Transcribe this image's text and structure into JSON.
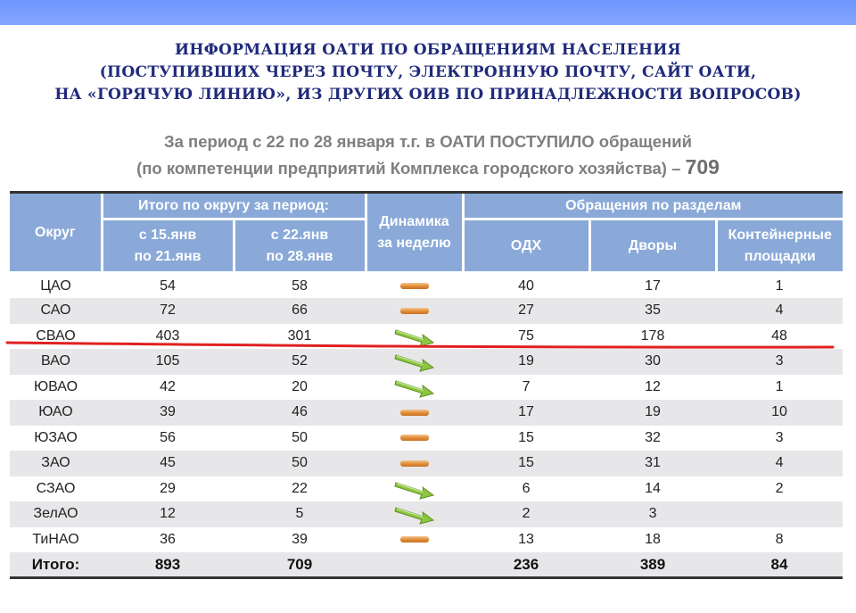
{
  "header": {
    "title_lines": [
      "ИНФОРМАЦИЯ ОАТИ ПО ОБРАЩЕНИЯМ НАСЕЛЕНИЯ",
      "(ПОСТУПИВШИХ ЧЕРЕЗ ПОЧТУ, ЭЛЕКТРОННУЮ ПОЧТУ, САЙТ ОАТИ,",
      "НА «ГОРЯЧУЮ ЛИНИЮ», ИЗ ДРУГИХ ОИВ ПО ПРИНАДЛЕЖНОСТИ ВОПРОСОВ)"
    ],
    "subtitle_line1": "За период с 22 по 28 января т.г. в ОАТИ ПОСТУПИЛО обращений",
    "subtitle_line2": "(по компетенции предприятий Комплекса городского хозяйства) –",
    "subtitle_total": "709"
  },
  "table": {
    "headers": {
      "district": "Округ",
      "period_group": "Итого по округу за период:",
      "period_prev": [
        "с 15.янв",
        "по 21.янв"
      ],
      "period_curr": [
        "с 22.янв",
        "по 28.янв"
      ],
      "dynamics": [
        "Динамика",
        "за неделю"
      ],
      "sections_group": "Обращения по разделам",
      "odh": "ОДХ",
      "yards": "Дворы",
      "containers": [
        "Контейнерные",
        "площадки"
      ]
    },
    "rows": [
      {
        "district": "ЦАО",
        "prev": "54",
        "curr": "58",
        "dynamic": "flat",
        "odh": "40",
        "yards": "17",
        "containers": "1"
      },
      {
        "district": "САО",
        "prev": "72",
        "curr": "66",
        "dynamic": "flat",
        "odh": "27",
        "yards": "35",
        "containers": "4"
      },
      {
        "district": "СВАО",
        "prev": "403",
        "curr": "301",
        "dynamic": "down",
        "odh": "75",
        "yards": "178",
        "containers": "48"
      },
      {
        "district": "ВАО",
        "prev": "105",
        "curr": "52",
        "dynamic": "down",
        "odh": "19",
        "yards": "30",
        "containers": "3"
      },
      {
        "district": "ЮВАО",
        "prev": "42",
        "curr": "20",
        "dynamic": "down",
        "odh": "7",
        "yards": "12",
        "containers": "1"
      },
      {
        "district": "ЮАО",
        "prev": "39",
        "curr": "46",
        "dynamic": "flat",
        "odh": "17",
        "yards": "19",
        "containers": "10"
      },
      {
        "district": "ЮЗАО",
        "prev": "56",
        "curr": "50",
        "dynamic": "flat",
        "odh": "15",
        "yards": "32",
        "containers": "3"
      },
      {
        "district": "ЗАО",
        "prev": "45",
        "curr": "50",
        "dynamic": "flat",
        "odh": "15",
        "yards": "31",
        "containers": "4"
      },
      {
        "district": "СЗАО",
        "prev": "29",
        "curr": "22",
        "dynamic": "down",
        "odh": "6",
        "yards": "14",
        "containers": "2"
      },
      {
        "district": "ЗелАО",
        "prev": "12",
        "curr": "5",
        "dynamic": "down",
        "odh": "2",
        "yards": "3",
        "containers": ""
      },
      {
        "district": "ТиНАО",
        "prev": "36",
        "curr": "39",
        "dynamic": "flat",
        "odh": "13",
        "yards": "18",
        "containers": "8"
      }
    ],
    "total": {
      "label": "Итого:",
      "prev": "893",
      "curr": "709",
      "odh": "236",
      "yards": "389",
      "containers": "84"
    }
  },
  "colors": {
    "top_bar": "#7ba0ff",
    "title": "#1f2a7a",
    "subtitle": "#7f7f7f",
    "header_bg": "#8aa9d8",
    "row_shade": "#e7e7ea",
    "flat_dash": "#e08c36",
    "down_arrow": "#8cc63f",
    "highlight_line": "#e02020"
  },
  "icons": {
    "flat": "orange-dash-icon",
    "down": "green-down-arrow-icon"
  }
}
